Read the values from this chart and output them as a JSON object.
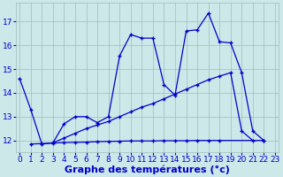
{
  "xlabel": "Graphe des températures (°c)",
  "background_color": "#cde8e8",
  "grid_color": "#9dbdbd",
  "line_color": "#0000cc",
  "ylim": [
    11.5,
    17.8
  ],
  "xlim": [
    -0.3,
    23.3
  ],
  "yticks": [
    12,
    13,
    14,
    15,
    16,
    17
  ],
  "xticks": [
    0,
    1,
    2,
    3,
    4,
    5,
    6,
    7,
    8,
    9,
    10,
    11,
    12,
    13,
    14,
    15,
    16,
    17,
    18,
    19,
    20,
    21,
    22,
    23
  ],
  "curve1_x": [
    0,
    1,
    2,
    3,
    4,
    5,
    6,
    7,
    8,
    9,
    10,
    11,
    12,
    13,
    14,
    15,
    16,
    17,
    18,
    19,
    20,
    21,
    22
  ],
  "curve1_y": [
    14.6,
    13.3,
    11.85,
    11.9,
    12.7,
    13.0,
    13.0,
    12.75,
    13.0,
    15.55,
    16.45,
    16.3,
    16.3,
    14.35,
    13.9,
    16.6,
    16.65,
    17.35,
    16.15,
    16.1,
    14.85,
    12.4,
    12.0
  ],
  "curve2_x": [
    3,
    4,
    5,
    6,
    7,
    8,
    9,
    10,
    11,
    12,
    13,
    14,
    15,
    16,
    17,
    18,
    19,
    20,
    21,
    22
  ],
  "curve2_y": [
    11.9,
    12.1,
    12.3,
    12.5,
    12.65,
    12.8,
    13.0,
    13.2,
    13.4,
    13.55,
    13.75,
    13.95,
    14.15,
    14.35,
    14.55,
    14.7,
    14.85,
    12.4,
    12.0,
    null
  ],
  "curve3_x": [
    1,
    2,
    3,
    4,
    5,
    6,
    7,
    8,
    9,
    10,
    11,
    12,
    13,
    14,
    15,
    16,
    17,
    18,
    22
  ],
  "curve3_y": [
    11.85,
    11.87,
    11.89,
    11.91,
    11.92,
    11.93,
    11.95,
    11.96,
    11.97,
    11.98,
    11.98,
    11.98,
    11.99,
    11.99,
    11.99,
    12.0,
    12.0,
    12.0,
    12.0
  ],
  "xlabel_fontsize": 8,
  "tick_fontsize": 6.5
}
